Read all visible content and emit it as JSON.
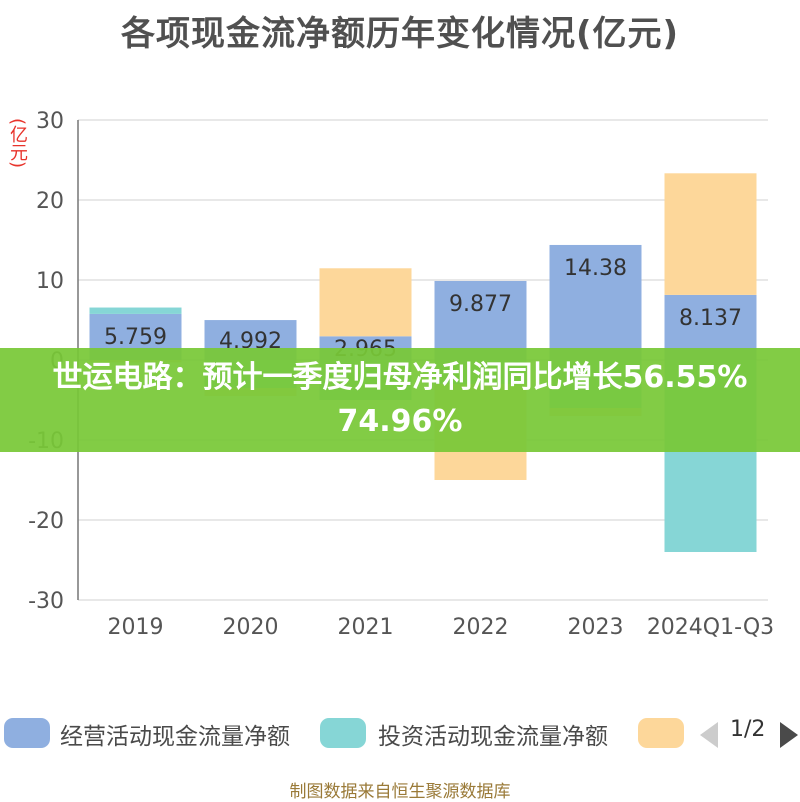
{
  "chart_data": {
    "type": "bar",
    "stacked": true,
    "title": "各项现金流净额历年变化情况(亿元)",
    "unit": "(亿元)",
    "categories": [
      "2019",
      "2020",
      "2021",
      "2022",
      "2023",
      "2024Q1-Q3"
    ],
    "series": [
      {
        "name": "经营活动现金流量净额",
        "color": "#8fafe0",
        "values": [
          5.759,
          4.992,
          2.965,
          9.877,
          14.38,
          8.137
        ],
        "labels": [
          "5.759",
          "4.992",
          "2.965",
          "9.877",
          "14.38",
          "8.137"
        ]
      },
      {
        "name": "投资活动现金流量净额",
        "color": "#86d6d6",
        "values": [
          0.8,
          -3.5,
          -5.0,
          -3.0,
          -6.0,
          -24.0
        ]
      },
      {
        "name": "",
        "color": "#fdd79a",
        "values": [
          -0.3,
          -1.0,
          8.5,
          -12.0,
          -1.0,
          15.2
        ]
      }
    ],
    "ylim": [
      -30,
      30
    ],
    "yticks": [
      30,
      20,
      10,
      0,
      -10,
      -20,
      -30
    ],
    "grid": true,
    "legend_position": "bottom"
  },
  "banner": {
    "text": "世运电路：预计一季度归母净利润同比增长56.55%74.96%"
  },
  "legend": {
    "page": "1/2",
    "arrow_color": "#4a4a4a",
    "arrow_inactive_color": "#cccccc"
  },
  "footer": {
    "source": "制图数据来自恒生聚源数据库"
  }
}
